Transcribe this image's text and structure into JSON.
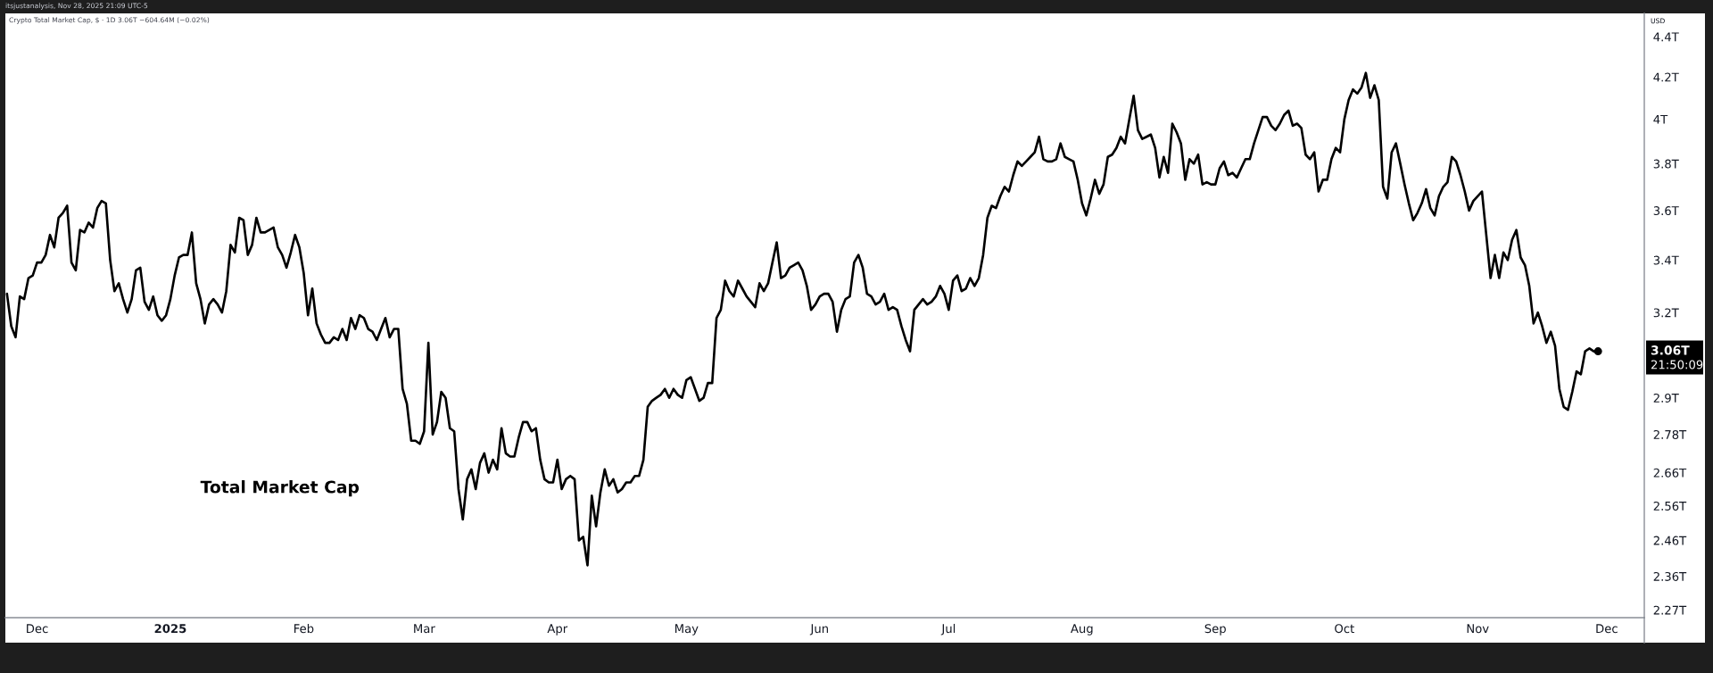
{
  "chart_data": {
    "type": "line",
    "title": "Total Market Cap",
    "subtitle": "Crypto Total Market Cap, $ · 1D 3.06T −604.64M (−0.02%)",
    "ylabel": "USD",
    "annotations": [
      "itsjustanalysis, Nov 28, 2025 21:09 UTC-5",
      "3.06T",
      "21:50:09"
    ],
    "log": true,
    "line_style": "solid",
    "xlim": [
      "2024-11-23T15:00",
      "2025-12-09T18:00"
    ],
    "xticks": [
      {
        "value": "2024-12-01",
        "label": "Dec"
      },
      {
        "value": "2025-01-01",
        "label": "2025"
      },
      {
        "value": "2025-02-01",
        "label": "Feb"
      },
      {
        "value": "2025-03-01",
        "label": "Mar"
      },
      {
        "value": "2025-04-01",
        "label": "Apr"
      },
      {
        "value": "2025-05-01",
        "label": "May"
      },
      {
        "value": "2025-06-01",
        "label": "Jun"
      },
      {
        "value": "2025-07-01",
        "label": "Jul"
      },
      {
        "value": "2025-08-01",
        "label": "Aug"
      },
      {
        "value": "2025-09-01",
        "label": "Sep"
      },
      {
        "value": "2025-10-01",
        "label": "Oct"
      },
      {
        "value": "2025-11-01",
        "label": "Nov"
      },
      {
        "value": "2025-12-01",
        "label": "Dec"
      }
    ],
    "ylim": [
      2.25,
      4.52
    ],
    "yticks": [
      {
        "value": 4.4,
        "label": "4.4T"
      },
      {
        "value": 4.2,
        "label": "4.2T"
      },
      {
        "value": 4,
        "label": "4T"
      },
      {
        "value": 3.8,
        "label": "3.8T"
      },
      {
        "value": 3.6,
        "label": "3.6T"
      },
      {
        "value": 3.4,
        "label": "3.4T"
      },
      {
        "value": 3.2,
        "label": "3.2T"
      },
      {
        "value": 2.9,
        "label": "2.9T"
      },
      {
        "value": 2.78,
        "label": "2.78T"
      },
      {
        "value": 2.66,
        "label": "2.66T"
      },
      {
        "value": 2.56,
        "label": "2.56T"
      },
      {
        "value": 2.46,
        "label": "2.46T"
      },
      {
        "value": 2.36,
        "label": "2.36T"
      },
      {
        "value": 2.27,
        "label": "2.27T"
      }
    ],
    "x": [
      "2024-11-24",
      "2024-11-25",
      "2024-11-26",
      "2024-11-27",
      "2024-11-28",
      "2024-11-29",
      "2024-11-30",
      "2024-12-01",
      "2024-12-02",
      "2024-12-03",
      "2024-12-04",
      "2024-12-05",
      "2024-12-06",
      "2024-12-07",
      "2024-12-08",
      "2024-12-09",
      "2024-12-10",
      "2024-12-11",
      "2024-12-12",
      "2024-12-13",
      "2024-12-14",
      "2024-12-15",
      "2024-12-16",
      "2024-12-17",
      "2024-12-18",
      "2024-12-19",
      "2024-12-20",
      "2024-12-21",
      "2024-12-22",
      "2024-12-23",
      "2024-12-24",
      "2024-12-25",
      "2024-12-26",
      "2024-12-27",
      "2024-12-28",
      "2024-12-29",
      "2024-12-30",
      "2024-12-31",
      "2025-01-01",
      "2025-01-02",
      "2025-01-03",
      "2025-01-04",
      "2025-01-05",
      "2025-01-06",
      "2025-01-07",
      "2025-01-08",
      "2025-01-09",
      "2025-01-10",
      "2025-01-11",
      "2025-01-12",
      "2025-01-13",
      "2025-01-14",
      "2025-01-15",
      "2025-01-16",
      "2025-01-17",
      "2025-01-18",
      "2025-01-19",
      "2025-01-20",
      "2025-01-21",
      "2025-01-22",
      "2025-01-23",
      "2025-01-24",
      "2025-01-25",
      "2025-01-26",
      "2025-01-27",
      "2025-01-28",
      "2025-01-29",
      "2025-01-30",
      "2025-01-31",
      "2025-02-01",
      "2025-02-02",
      "2025-02-03",
      "2025-02-04",
      "2025-02-05",
      "2025-02-06",
      "2025-02-07",
      "2025-02-08",
      "2025-02-09",
      "2025-02-10",
      "2025-02-11",
      "2025-02-12",
      "2025-02-13",
      "2025-02-14",
      "2025-02-15",
      "2025-02-16",
      "2025-02-17",
      "2025-02-18",
      "2025-02-19",
      "2025-02-20",
      "2025-02-21",
      "2025-02-22",
      "2025-02-23",
      "2025-02-24",
      "2025-02-25",
      "2025-02-26",
      "2025-02-27",
      "2025-02-28",
      "2025-03-01",
      "2025-03-02",
      "2025-03-03",
      "2025-03-04",
      "2025-03-05",
      "2025-03-06",
      "2025-03-07",
      "2025-03-08",
      "2025-03-09",
      "2025-03-10",
      "2025-03-11",
      "2025-03-12",
      "2025-03-13",
      "2025-03-14",
      "2025-03-15",
      "2025-03-16",
      "2025-03-17",
      "2025-03-18",
      "2025-03-19",
      "2025-03-20",
      "2025-03-21",
      "2025-03-22",
      "2025-03-23",
      "2025-03-24",
      "2025-03-25",
      "2025-03-26",
      "2025-03-27",
      "2025-03-28",
      "2025-03-29",
      "2025-03-30",
      "2025-03-31",
      "2025-04-01",
      "2025-04-02",
      "2025-04-03",
      "2025-04-04",
      "2025-04-05",
      "2025-04-06",
      "2025-04-07",
      "2025-04-08",
      "2025-04-09",
      "2025-04-10",
      "2025-04-11",
      "2025-04-12",
      "2025-04-13",
      "2025-04-14",
      "2025-04-15",
      "2025-04-16",
      "2025-04-17",
      "2025-04-18",
      "2025-04-19",
      "2025-04-20",
      "2025-04-21",
      "2025-04-22",
      "2025-04-23",
      "2025-04-24",
      "2025-04-25",
      "2025-04-26",
      "2025-04-27",
      "2025-04-28",
      "2025-04-29",
      "2025-04-30",
      "2025-05-01",
      "2025-05-02",
      "2025-05-03",
      "2025-05-04",
      "2025-05-05",
      "2025-05-06",
      "2025-05-07",
      "2025-05-08",
      "2025-05-09",
      "2025-05-10",
      "2025-05-11",
      "2025-05-12",
      "2025-05-13",
      "2025-05-14",
      "2025-05-15",
      "2025-05-16",
      "2025-05-17",
      "2025-05-18",
      "2025-05-19",
      "2025-05-20",
      "2025-05-21",
      "2025-05-22",
      "2025-05-23",
      "2025-05-24",
      "2025-05-25",
      "2025-05-26",
      "2025-05-27",
      "2025-05-28",
      "2025-05-29",
      "2025-05-30",
      "2025-05-31",
      "2025-06-01",
      "2025-06-02",
      "2025-06-03",
      "2025-06-04",
      "2025-06-05",
      "2025-06-06",
      "2025-06-07",
      "2025-06-08",
      "2025-06-09",
      "2025-06-10",
      "2025-06-11",
      "2025-06-12",
      "2025-06-13",
      "2025-06-14",
      "2025-06-15",
      "2025-06-16",
      "2025-06-17",
      "2025-06-18",
      "2025-06-19",
      "2025-06-20",
      "2025-06-21",
      "2025-06-22",
      "2025-06-23",
      "2025-06-24",
      "2025-06-25",
      "2025-06-26",
      "2025-06-27",
      "2025-06-28",
      "2025-06-29",
      "2025-06-30",
      "2025-07-01",
      "2025-07-02",
      "2025-07-03",
      "2025-07-04",
      "2025-07-05",
      "2025-07-06",
      "2025-07-07",
      "2025-07-08",
      "2025-07-09",
      "2025-07-10",
      "2025-07-11",
      "2025-07-12",
      "2025-07-13",
      "2025-07-14",
      "2025-07-15",
      "2025-07-16",
      "2025-07-17",
      "2025-07-18",
      "2025-07-19",
      "2025-07-20",
      "2025-07-21",
      "2025-07-22",
      "2025-07-23",
      "2025-07-24",
      "2025-07-25",
      "2025-07-26",
      "2025-07-27",
      "2025-07-28",
      "2025-07-29",
      "2025-07-30",
      "2025-07-31",
      "2025-08-01",
      "2025-08-02",
      "2025-08-03",
      "2025-08-04",
      "2025-08-05",
      "2025-08-06",
      "2025-08-07",
      "2025-08-08",
      "2025-08-09",
      "2025-08-10",
      "2025-08-11",
      "2025-08-12",
      "2025-08-13",
      "2025-08-14",
      "2025-08-15",
      "2025-08-16",
      "2025-08-17",
      "2025-08-18",
      "2025-08-19",
      "2025-08-20",
      "2025-08-21",
      "2025-08-22",
      "2025-08-23",
      "2025-08-24",
      "2025-08-25",
      "2025-08-26",
      "2025-08-27",
      "2025-08-28",
      "2025-08-29",
      "2025-08-30",
      "2025-08-31",
      "2025-09-01",
      "2025-09-02",
      "2025-09-03",
      "2025-09-04",
      "2025-09-05",
      "2025-09-06",
      "2025-09-07",
      "2025-09-08",
      "2025-09-09",
      "2025-09-10",
      "2025-09-11",
      "2025-09-12",
      "2025-09-13",
      "2025-09-14",
      "2025-09-15",
      "2025-09-16",
      "2025-09-17",
      "2025-09-18",
      "2025-09-19",
      "2025-09-20",
      "2025-09-21",
      "2025-09-22",
      "2025-09-23",
      "2025-09-24",
      "2025-09-25",
      "2025-09-26",
      "2025-09-27",
      "2025-09-28",
      "2025-09-29",
      "2025-09-30",
      "2025-10-01",
      "2025-10-02",
      "2025-10-03",
      "2025-10-04",
      "2025-10-05",
      "2025-10-06",
      "2025-10-07",
      "2025-10-08",
      "2025-10-09",
      "2025-10-10",
      "2025-10-11",
      "2025-10-12",
      "2025-10-13",
      "2025-10-14",
      "2025-10-15",
      "2025-10-16",
      "2025-10-17",
      "2025-10-18",
      "2025-10-19",
      "2025-10-20",
      "2025-10-21",
      "2025-10-22",
      "2025-10-23",
      "2025-10-24",
      "2025-10-25",
      "2025-10-26",
      "2025-10-27",
      "2025-10-28",
      "2025-10-29",
      "2025-10-30",
      "2025-10-31",
      "2025-11-01",
      "2025-11-02",
      "2025-11-03",
      "2025-11-04",
      "2025-11-05",
      "2025-11-06",
      "2025-11-07",
      "2025-11-08",
      "2025-11-09",
      "2025-11-10",
      "2025-11-11",
      "2025-11-12",
      "2025-11-13",
      "2025-11-14",
      "2025-11-15",
      "2025-11-16",
      "2025-11-17",
      "2025-11-18",
      "2025-11-19",
      "2025-11-20",
      "2025-11-21",
      "2025-11-22",
      "2025-11-23",
      "2025-11-24",
      "2025-11-25",
      "2025-11-26",
      "2025-11-27",
      "2025-11-28",
      "2025-11-29"
    ],
    "series": [
      {
        "color": "#000000",
        "values": [
          3.27,
          3.15,
          3.11,
          3.26,
          3.25,
          3.33,
          3.34,
          3.39,
          3.39,
          3.42,
          3.5,
          3.45,
          3.57,
          3.59,
          3.62,
          3.39,
          3.36,
          3.52,
          3.51,
          3.55,
          3.53,
          3.61,
          3.64,
          3.63,
          3.4,
          3.28,
          3.31,
          3.25,
          3.2,
          3.25,
          3.36,
          3.37,
          3.24,
          3.21,
          3.26,
          3.19,
          3.17,
          3.19,
          3.25,
          3.34,
          3.41,
          3.42,
          3.42,
          3.51,
          3.31,
          3.25,
          3.16,
          3.23,
          3.25,
          3.23,
          3.2,
          3.28,
          3.46,
          3.43,
          3.57,
          3.56,
          3.42,
          3.46,
          3.57,
          3.51,
          3.51,
          3.52,
          3.53,
          3.45,
          3.42,
          3.37,
          3.43,
          3.5,
          3.45,
          3.35,
          3.19,
          3.29,
          3.16,
          3.12,
          3.09,
          3.09,
          3.11,
          3.1,
          3.14,
          3.1,
          3.18,
          3.14,
          3.19,
          3.18,
          3.14,
          3.13,
          3.1,
          3.14,
          3.18,
          3.11,
          3.14,
          3.14,
          2.93,
          2.88,
          2.76,
          2.76,
          2.75,
          2.79,
          3.09,
          2.78,
          2.82,
          2.92,
          2.9,
          2.8,
          2.79,
          2.61,
          2.52,
          2.64,
          2.67,
          2.61,
          2.69,
          2.72,
          2.66,
          2.7,
          2.67,
          2.8,
          2.72,
          2.71,
          2.71,
          2.77,
          2.82,
          2.82,
          2.79,
          2.8,
          2.7,
          2.64,
          2.63,
          2.63,
          2.7,
          2.61,
          2.64,
          2.65,
          2.64,
          2.46,
          2.47,
          2.39,
          2.59,
          2.5,
          2.6,
          2.67,
          2.62,
          2.64,
          2.6,
          2.61,
          2.63,
          2.63,
          2.65,
          2.65,
          2.7,
          2.87,
          2.89,
          2.9,
          2.91,
          2.93,
          2.9,
          2.93,
          2.91,
          2.9,
          2.96,
          2.97,
          2.93,
          2.89,
          2.9,
          2.95,
          2.95,
          3.18,
          3.21,
          3.32,
          3.28,
          3.26,
          3.32,
          3.29,
          3.26,
          3.24,
          3.22,
          3.31,
          3.28,
          3.31,
          3.39,
          3.47,
          3.33,
          3.34,
          3.37,
          3.38,
          3.39,
          3.36,
          3.3,
          3.21,
          3.23,
          3.26,
          3.27,
          3.27,
          3.24,
          3.13,
          3.21,
          3.25,
          3.26,
          3.39,
          3.42,
          3.37,
          3.27,
          3.26,
          3.23,
          3.24,
          3.27,
          3.21,
          3.22,
          3.21,
          3.15,
          3.1,
          3.06,
          3.21,
          3.23,
          3.25,
          3.23,
          3.24,
          3.26,
          3.3,
          3.27,
          3.21,
          3.32,
          3.34,
          3.28,
          3.29,
          3.33,
          3.3,
          3.33,
          3.42,
          3.57,
          3.62,
          3.61,
          3.66,
          3.7,
          3.68,
          3.75,
          3.81,
          3.79,
          3.81,
          3.83,
          3.85,
          3.92,
          3.82,
          3.81,
          3.81,
          3.82,
          3.89,
          3.83,
          3.82,
          3.81,
          3.73,
          3.63,
          3.58,
          3.65,
          3.73,
          3.67,
          3.71,
          3.83,
          3.84,
          3.87,
          3.92,
          3.89,
          4.0,
          4.11,
          3.95,
          3.91,
          3.92,
          3.93,
          3.87,
          3.74,
          3.83,
          3.76,
          3.98,
          3.94,
          3.89,
          3.73,
          3.82,
          3.8,
          3.84,
          3.71,
          3.72,
          3.71,
          3.71,
          3.78,
          3.81,
          3.75,
          3.76,
          3.74,
          3.78,
          3.82,
          3.82,
          3.89,
          3.95,
          4.01,
          4.01,
          3.97,
          3.95,
          3.98,
          4.02,
          4.04,
          3.97,
          3.98,
          3.96,
          3.84,
          3.82,
          3.85,
          3.68,
          3.73,
          3.73,
          3.82,
          3.87,
          3.85,
          4.0,
          4.09,
          4.14,
          4.12,
          4.15,
          4.22,
          4.1,
          4.16,
          4.09,
          3.7,
          3.65,
          3.85,
          3.89,
          3.8,
          3.71,
          3.63,
          3.56,
          3.59,
          3.63,
          3.69,
          3.61,
          3.58,
          3.66,
          3.7,
          3.72,
          3.83,
          3.81,
          3.75,
          3.68,
          3.6,
          3.64,
          3.66,
          3.68,
          3.5,
          3.33,
          3.42,
          3.33,
          3.43,
          3.4,
          3.48,
          3.52,
          3.41,
          3.38,
          3.3,
          3.16,
          3.2,
          3.15,
          3.09,
          3.13,
          3.08,
          2.93,
          2.87,
          2.86,
          2.92,
          2.99,
          2.98,
          3.06,
          3.07,
          3.06,
          3.06
        ]
      }
    ]
  }
}
